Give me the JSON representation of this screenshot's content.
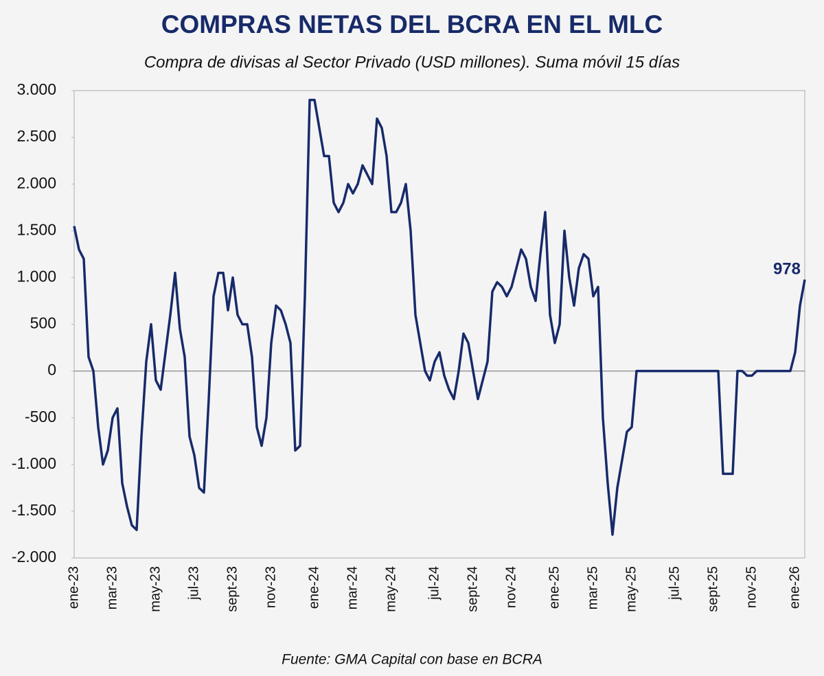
{
  "chart_data": {
    "type": "line",
    "title": "COMPRAS NETAS DEL BCRA EN EL MLC",
    "subtitle": "Compra de divisas al Sector Privado (USD millones). Suma móvil 15 días",
    "source": "Fuente: GMA Capital con base en BCRA",
    "color": "#172a69",
    "ylim": [
      -2000,
      3000
    ],
    "yticks": [
      {
        "value": -2000,
        "label": "-2.000"
      },
      {
        "value": -1500,
        "label": "-1.500"
      },
      {
        "value": -1000,
        "label": "-1.000"
      },
      -500,
      0,
      500,
      {
        "value": 1000,
        "label": "1.000"
      },
      {
        "value": 1500,
        "label": "1.500"
      },
      {
        "value": 2000,
        "label": "2.000"
      },
      {
        "value": 2500,
        "label": "2.500"
      },
      {
        "value": 3000,
        "label": "3.000"
      }
    ],
    "categories": [
      "ene-23",
      null,
      null,
      null,
      null,
      null,
      null,
      null,
      "mar-23",
      null,
      null,
      null,
      null,
      null,
      null,
      null,
      null,
      "may-23",
      null,
      null,
      null,
      null,
      null,
      null,
      null,
      "jul-23",
      null,
      null,
      null,
      null,
      null,
      null,
      null,
      "sept-23",
      null,
      null,
      null,
      null,
      null,
      null,
      null,
      "nov-23",
      null,
      null,
      null,
      null,
      null,
      null,
      null,
      null,
      "ene-24",
      null,
      null,
      null,
      null,
      null,
      null,
      null,
      "mar-24",
      null,
      null,
      null,
      null,
      null,
      null,
      null,
      "may-24",
      null,
      null,
      null,
      null,
      null,
      null,
      null,
      null,
      "jul-24",
      null,
      null,
      null,
      null,
      null,
      null,
      null,
      "sept-24",
      null,
      null,
      null,
      null,
      null,
      null,
      null,
      "nov-24",
      null,
      null,
      null,
      null,
      null,
      null,
      null,
      null,
      "ene-25",
      null,
      null,
      null,
      null,
      null,
      null,
      null,
      "mar-25",
      null,
      null,
      null,
      null,
      null,
      null,
      null,
      "may-25",
      null,
      null,
      null,
      null,
      null,
      null,
      null,
      null,
      "jul-25",
      null,
      null,
      null,
      null,
      null,
      null,
      null,
      "sept-25",
      null,
      null,
      null,
      null,
      null,
      null,
      null,
      "nov-25",
      null,
      null,
      null,
      null,
      null,
      null,
      null,
      null,
      "ene-26",
      null,
      null
    ],
    "values": [
      1550,
      1300,
      1200,
      150,
      0,
      -600,
      -1000,
      -850,
      -500,
      -400,
      -1200,
      -1450,
      -1650,
      -1700,
      -700,
      100,
      500,
      -100,
      -200,
      200,
      600,
      1050,
      450,
      150,
      -700,
      -900,
      -1250,
      -1300,
      -300,
      800,
      1050,
      1050,
      650,
      1000,
      600,
      500,
      500,
      150,
      -600,
      -800,
      -500,
      300,
      700,
      650,
      500,
      300,
      -850,
      -800,
      800,
      2900,
      2900,
      2600,
      2300,
      2300,
      1800,
      1700,
      1800,
      2000,
      1900,
      2000,
      2200,
      2100,
      2000,
      2700,
      2600,
      2300,
      1700,
      1700,
      1800,
      2000,
      1500,
      600,
      300,
      0,
      -100,
      100,
      200,
      -50,
      -200,
      -300,
      0,
      400,
      300,
      0,
      -300,
      -100,
      100,
      850,
      950,
      900,
      800,
      900,
      1100,
      1300,
      1200,
      900,
      750,
      1250,
      1700,
      600,
      300,
      500,
      1500,
      1000,
      700,
      1100,
      1250,
      1200,
      800,
      900,
      -500,
      -1200,
      -1750,
      -1250,
      -950,
      -650,
      -600,
      0,
      0,
      0,
      0,
      0,
      0,
      0,
      0,
      0,
      0,
      0,
      0,
      0,
      0,
      0,
      0,
      0,
      0,
      -1100,
      -1100,
      -1100,
      0,
      0,
      -50,
      -50,
      0,
      0,
      0,
      0,
      0,
      0,
      0,
      0,
      200,
      700,
      978
    ]
  }
}
